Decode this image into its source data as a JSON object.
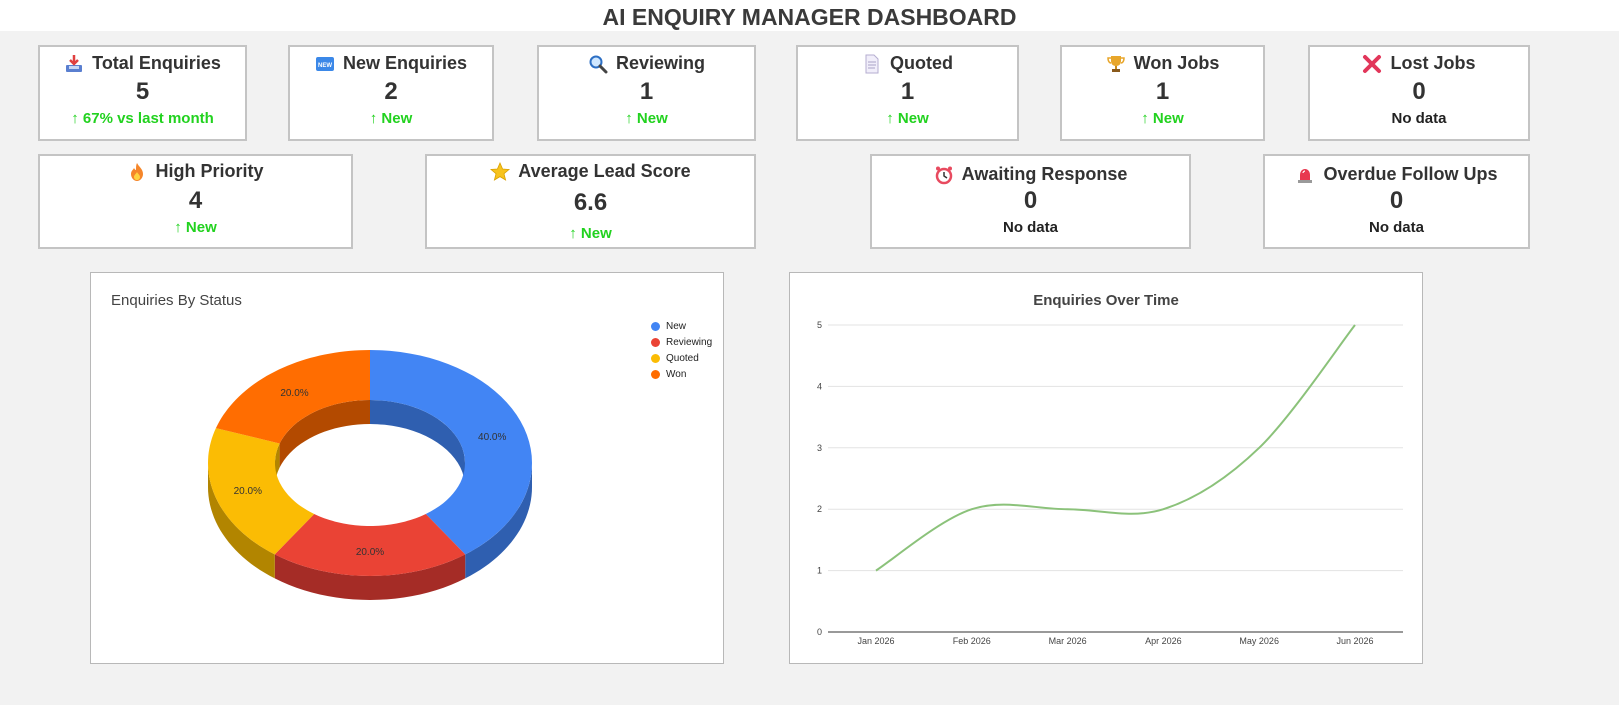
{
  "page": {
    "title": "AI ENQUIRY MANAGER DASHBOARD"
  },
  "cards_row1": [
    {
      "icon": "inbox-tray-icon",
      "label": "Total Enquiries",
      "value": "5",
      "trend": "↑ 67% vs last month",
      "trend_type": "up"
    },
    {
      "icon": "new-badge-icon",
      "label": "New Enquiries",
      "value": "2",
      "trend": "↑ New",
      "trend_type": "up"
    },
    {
      "icon": "magnifier-icon",
      "label": "Reviewing",
      "value": "1",
      "trend": "↑ New",
      "trend_type": "up"
    },
    {
      "icon": "document-icon",
      "label": "Quoted",
      "value": "1",
      "trend": "↑ New",
      "trend_type": "up"
    },
    {
      "icon": "trophy-icon",
      "label": "Won Jobs",
      "value": "1",
      "trend": "↑ New",
      "trend_type": "up"
    },
    {
      "icon": "cross-mark-icon",
      "label": "Lost Jobs",
      "value": "0",
      "trend": "No data",
      "trend_type": "none"
    }
  ],
  "cards_row2": [
    {
      "icon": "fire-icon",
      "label": "High Priority",
      "value": "4",
      "trend": "↑ New",
      "trend_type": "up"
    },
    {
      "icon": "star-icon",
      "label": "Average Lead Score",
      "value": "6.6",
      "trend": "↑ New",
      "trend_type": "up"
    },
    {
      "icon": "alarm-clock-icon",
      "label": "Awaiting Response",
      "value": "0",
      "trend": "No data",
      "trend_type": "none"
    },
    {
      "icon": "siren-icon",
      "label": "Overdue Follow Ups",
      "value": "0",
      "trend": "No data",
      "trend_type": "none"
    }
  ],
  "colors": {
    "trend_up": "#22d21f",
    "line": "#8bc27a"
  },
  "chart_data": [
    {
      "type": "pie",
      "title": "Enquiries By Status",
      "legend_position": "top-right",
      "slices": [
        {
          "label": "New",
          "value": 40.0,
          "display": "40.0%",
          "color": "#4285f4",
          "side": "#2f5fb0"
        },
        {
          "label": "Reviewing",
          "value": 20.0,
          "display": "20.0%",
          "color": "#ea4335",
          "side": "#a52c26"
        },
        {
          "label": "Quoted",
          "value": 20.0,
          "display": "20.0%",
          "color": "#fbbc04",
          "side": "#b28500"
        },
        {
          "label": "Won",
          "value": 20.0,
          "display": "20.0%",
          "color": "#ff6d01",
          "side": "#b34a00"
        }
      ]
    },
    {
      "type": "line",
      "title": "Enquiries Over Time",
      "x": [
        "Jan 2026",
        "Feb 2026",
        "Mar 2026",
        "Apr 2026",
        "May 2026",
        "Jun 2026"
      ],
      "series": [
        {
          "values": [
            1,
            2,
            2,
            2,
            3,
            5
          ]
        }
      ],
      "ylim": [
        0,
        5
      ],
      "yticks": [
        "0",
        "1",
        "2",
        "3",
        "4",
        "5"
      ],
      "grid": true
    }
  ]
}
